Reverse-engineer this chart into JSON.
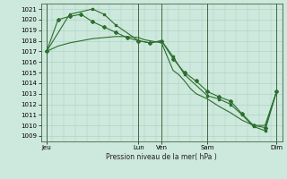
{
  "title": "",
  "xlabel": "Pression niveau de la mer( hPa )",
  "ylabel": "",
  "background_color": "#cde8dc",
  "grid_color": "#a8cfc0",
  "line_color": "#2d6e2d",
  "ylim": [
    1008.5,
    1021.5
  ],
  "yticks": [
    1009,
    1010,
    1011,
    1012,
    1013,
    1014,
    1015,
    1016,
    1017,
    1018,
    1019,
    1020,
    1021
  ],
  "xlim": [
    0,
    21
  ],
  "day_labels": [
    "Jeu",
    "",
    "Lun",
    "Ven",
    "",
    "Sam",
    "",
    "Dim"
  ],
  "vline_positions": [
    0.5,
    8.5,
    10.5,
    14.5,
    20.5
  ],
  "line1_x": [
    0.5,
    1.5,
    2.5,
    3.5,
    4.5,
    5.5,
    6.5,
    7.5,
    8.5,
    9.0,
    9.5,
    10.5,
    11.0,
    11.5,
    12.0,
    12.5,
    13.0,
    13.5,
    14.5,
    15.5,
    16.5,
    17.5,
    18.5,
    19.5,
    20.5
  ],
  "line1_y": [
    1017.0,
    1017.5,
    1017.8,
    1018.0,
    1018.2,
    1018.3,
    1018.4,
    1018.4,
    1018.3,
    1018.1,
    1018.0,
    1017.8,
    1016.5,
    1015.2,
    1014.8,
    1014.2,
    1013.5,
    1013.0,
    1012.5,
    1011.8,
    1011.2,
    1010.5,
    1010.0,
    1010.0,
    1013.2
  ],
  "line2_x": [
    0.5,
    1.5,
    2.5,
    3.5,
    4.5,
    5.5,
    6.5,
    7.5,
    8.5,
    9.5,
    10.5,
    11.5,
    12.5,
    13.5,
    14.5,
    15.5,
    16.5,
    17.5,
    18.5,
    19.5,
    20.5
  ],
  "line2_y": [
    1017.0,
    1020.0,
    1020.3,
    1020.5,
    1019.8,
    1019.3,
    1018.8,
    1018.3,
    1018.0,
    1017.8,
    1018.0,
    1016.3,
    1015.0,
    1014.2,
    1013.2,
    1012.7,
    1012.3,
    1011.1,
    1010.0,
    1009.8,
    1013.2
  ],
  "line3_x": [
    0.5,
    2.5,
    4.5,
    5.5,
    6.5,
    8.5,
    9.5,
    10.5,
    11.5,
    12.5,
    14.5,
    15.5,
    16.5,
    17.5,
    18.5,
    19.5,
    20.5
  ],
  "line3_y": [
    1017.0,
    1020.5,
    1021.0,
    1020.5,
    1019.5,
    1018.0,
    1017.8,
    1018.0,
    1016.5,
    1014.8,
    1012.8,
    1012.5,
    1012.0,
    1011.0,
    1009.9,
    1009.5,
    1013.2
  ],
  "marker_size": 2.0,
  "line_width": 0.8,
  "font_size_tick": 5.0,
  "font_size_xlabel": 5.5
}
